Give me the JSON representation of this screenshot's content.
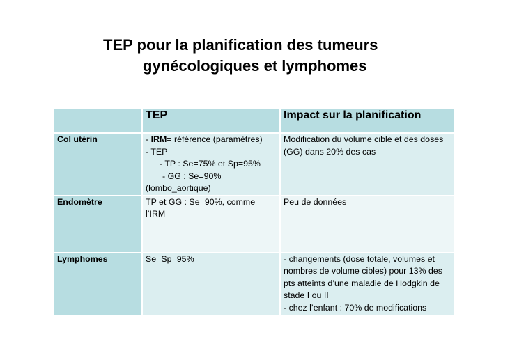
{
  "title": {
    "line1": "TEP pour la planification des tumeurs",
    "line2": "gynécologiques et lymphomes"
  },
  "table": {
    "headers": [
      "",
      "TEP",
      "Impact sur la planification"
    ],
    "rows": [
      {
        "label": "Col utérin",
        "tep": {
          "l1_bold": "IRM",
          "l1_prefix": "- ",
          "l1_rest": "= référence (paramètres)",
          "l2": "- TEP",
          "l3": "- TP : Se=75% et Sp=95%",
          "l4": "- GG : Se=90%",
          "l5": "(lombo_aortique)"
        },
        "impact": "Modification du volume cible et des doses (GG) dans 20% des cas"
      },
      {
        "label": "Endomètre",
        "tep": "TP et GG : Se=90%, comme l’IRM",
        "impact": "Peu de données"
      },
      {
        "label": "Lymphomes",
        "tep": "Se=Sp=95%",
        "impact": {
          "p1": "- changements (dose totale, volumes et nombres de volume cibles) pour 13% des pts atteints d’une maladie de Hodgkin de stade I ou II",
          "p2": "- chez l’enfant : 70% de modifications"
        }
      }
    ]
  },
  "colors": {
    "header_bg": "#b7dde1",
    "row_dark": "#dbeef0",
    "row_light": "#edf6f7"
  }
}
